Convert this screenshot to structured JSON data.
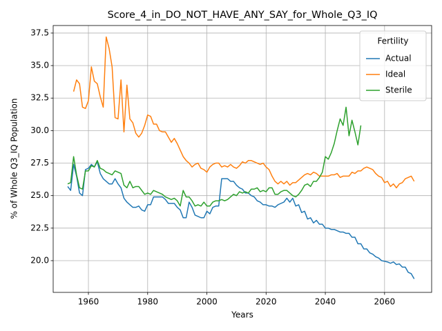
{
  "chart_data": {
    "type": "line",
    "title": "Score_4_in_DO_NOT_HAVE_ANY_SAY_for_Whole_Q3_IQ",
    "xlabel": "Years",
    "ylabel": "% of Whole Q3_IQ Population",
    "legend_title": "Fertility",
    "legend_loc": "upper right",
    "grid": true,
    "xlim": [
      1948.1,
      2075.9
    ],
    "ylim": [
      17.56,
      38.08
    ],
    "xticks": [
      1960,
      1980,
      2000,
      2020,
      2040,
      2060
    ],
    "yticks": [
      {
        "value": 20,
        "label": "20.0"
      },
      22.5,
      {
        "value": 25,
        "label": "25.0"
      },
      27.5,
      {
        "value": 30,
        "label": "30.0"
      },
      32.5,
      {
        "value": 35,
        "label": "35.0"
      },
      37.5
    ],
    "x": [
      1953,
      1954,
      1955,
      1956,
      1957,
      1958,
      1959,
      1960,
      1961,
      1962,
      1963,
      1964,
      1965,
      1966,
      1967,
      1968,
      1969,
      1970,
      1971,
      1972,
      1973,
      1974,
      1975,
      1976,
      1977,
      1978,
      1979,
      1980,
      1981,
      1982,
      1983,
      1984,
      1985,
      1986,
      1987,
      1988,
      1989,
      1990,
      1991,
      1992,
      1993,
      1994,
      1995,
      1996,
      1997,
      1998,
      1999,
      2000,
      2001,
      2002,
      2003,
      2004,
      2005,
      2006,
      2007,
      2008,
      2009,
      2010,
      2011,
      2012,
      2013,
      2014,
      2015,
      2016,
      2017,
      2018,
      2019,
      2020,
      2021,
      2022,
      2023,
      2024,
      2025,
      2026,
      2027,
      2028,
      2029,
      2030,
      2031,
      2032,
      2033,
      2034,
      2035,
      2036,
      2037,
      2038,
      2039,
      2040,
      2041,
      2042,
      2043,
      2044,
      2045,
      2046,
      2047,
      2048,
      2049,
      2050,
      2051,
      2052,
      2053,
      2054,
      2055,
      2056,
      2057,
      2058,
      2059,
      2060,
      2061,
      2062,
      2063,
      2064,
      2065,
      2066,
      2067,
      2068,
      2069,
      2070
    ],
    "series": [
      {
        "name": "Actual",
        "color": "#1f77b4",
        "values": [
          25.7,
          25.4,
          27.4,
          26.5,
          25.2,
          25.0,
          27.0,
          27.1,
          27.4,
          27.2,
          27.6,
          26.7,
          26.3,
          26.1,
          25.9,
          25.9,
          26.3,
          25.9,
          25.6,
          24.8,
          24.5,
          24.3,
          24.1,
          24.1,
          24.2,
          23.9,
          23.8,
          24.3,
          24.3,
          24.9,
          24.9,
          24.9,
          24.9,
          24.7,
          24.4,
          24.4,
          24.4,
          24.1,
          23.9,
          23.3,
          23.3,
          24.5,
          24.1,
          23.5,
          23.4,
          23.3,
          23.3,
          23.8,
          23.6,
          24.1,
          24.2,
          24.2,
          26.3,
          26.3,
          26.3,
          26.1,
          26.1,
          25.8,
          25.6,
          25.5,
          25.2,
          25.2,
          25.0,
          24.9,
          24.6,
          24.5,
          24.3,
          24.3,
          24.2,
          24.2,
          24.1,
          24.3,
          24.4,
          24.5,
          24.8,
          24.5,
          24.8,
          24.2,
          24.3,
          23.7,
          23.8,
          23.2,
          23.3,
          22.9,
          23.1,
          22.8,
          22.8,
          22.5,
          22.5,
          22.4,
          22.4,
          22.3,
          22.2,
          22.2,
          22.1,
          22.1,
          21.8,
          21.8,
          21.3,
          21.3,
          20.9,
          20.9,
          20.6,
          20.5,
          20.3,
          20.2,
          20.0,
          19.95,
          19.9,
          19.8,
          19.9,
          19.7,
          19.75,
          19.5,
          19.5,
          19.1,
          19.0,
          18.6
        ]
      },
      {
        "name": "Ideal",
        "color": "#ff7f0e",
        "values": [
          null,
          null,
          33.0,
          33.9,
          33.6,
          31.8,
          31.7,
          32.3,
          34.9,
          33.8,
          33.6,
          32.6,
          31.8,
          37.2,
          36.3,
          34.9,
          31.0,
          30.9,
          33.9,
          29.9,
          33.5,
          30.9,
          30.6,
          29.8,
          29.5,
          29.8,
          30.4,
          31.2,
          31.1,
          30.5,
          30.5,
          30.0,
          29.9,
          29.9,
          29.5,
          29.1,
          29.4,
          29.0,
          28.5,
          28.0,
          27.7,
          27.5,
          27.2,
          27.4,
          27.5,
          27.1,
          27.0,
          26.8,
          27.2,
          27.4,
          27.5,
          27.5,
          27.2,
          27.3,
          27.2,
          27.4,
          27.2,
          27.1,
          27.3,
          27.6,
          27.5,
          27.7,
          27.7,
          27.6,
          27.5,
          27.4,
          27.5,
          27.2,
          27.0,
          26.5,
          26.1,
          25.9,
          26.1,
          25.9,
          26.1,
          25.8,
          26.0,
          26.0,
          26.2,
          26.4,
          26.6,
          26.7,
          26.6,
          26.8,
          26.7,
          26.5,
          26.5,
          26.5,
          26.5,
          26.6,
          26.6,
          26.7,
          26.4,
          26.5,
          26.5,
          26.5,
          26.8,
          26.7,
          26.9,
          26.9,
          27.1,
          27.2,
          27.1,
          27.0,
          26.7,
          26.5,
          26.4,
          26.0,
          26.1,
          25.7,
          25.9,
          25.6,
          25.9,
          26.0,
          26.3,
          26.4,
          26.5,
          26.1
        ]
      },
      {
        "name": "Sterile",
        "color": "#2ca02c",
        "values": [
          25.9,
          26.0,
          28.0,
          26.6,
          25.6,
          25.5,
          26.9,
          26.9,
          27.3,
          27.2,
          27.7,
          27.1,
          27.0,
          26.8,
          26.7,
          26.6,
          26.9,
          26.8,
          26.7,
          25.8,
          25.6,
          26.1,
          25.6,
          25.7,
          25.7,
          25.4,
          25.1,
          25.2,
          25.1,
          25.4,
          25.3,
          25.2,
          25.1,
          24.9,
          24.8,
          24.7,
          24.8,
          24.6,
          24.2,
          25.4,
          24.9,
          24.9,
          24.6,
          24.2,
          24.3,
          24.2,
          24.5,
          24.2,
          24.2,
          24.5,
          24.6,
          24.6,
          24.7,
          24.6,
          24.7,
          24.9,
          25.1,
          25.0,
          25.3,
          25.2,
          25.3,
          25.2,
          25.5,
          25.5,
          25.6,
          25.3,
          25.4,
          25.3,
          25.6,
          25.6,
          25.1,
          25.1,
          25.3,
          25.4,
          25.4,
          25.2,
          25.0,
          24.9,
          25.1,
          25.4,
          25.8,
          25.9,
          25.7,
          26.1,
          26.1,
          26.4,
          26.8,
          28.0,
          27.8,
          28.3,
          29.0,
          30.0,
          30.9,
          30.4,
          31.8,
          29.6,
          30.8,
          29.9,
          28.9,
          30.4,
          null,
          null,
          null,
          null,
          null,
          null,
          null,
          null,
          null,
          null,
          null,
          null,
          null,
          null,
          null,
          null,
          null,
          null
        ]
      }
    ]
  }
}
